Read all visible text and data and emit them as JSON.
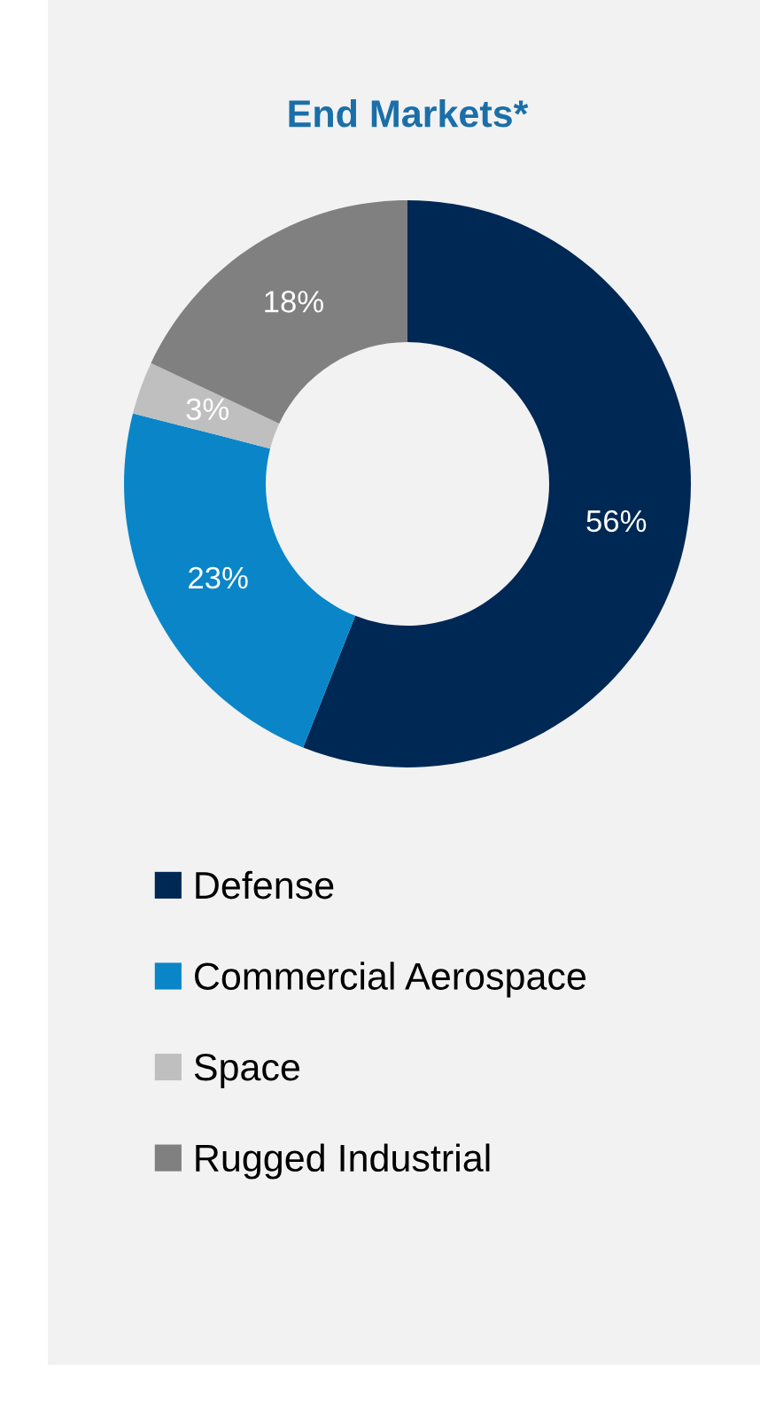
{
  "chart_data": {
    "type": "donut",
    "title": "End Markets*",
    "categories": [
      "Defense",
      "Commercial Aerospace",
      "Space",
      "Rugged Industrial"
    ],
    "values": [
      56,
      23,
      3,
      18
    ],
    "value_labels": [
      "56%",
      "23%",
      "3%",
      "18%"
    ],
    "colors": [
      "#002855",
      "#0a86c8",
      "#bfbfbf",
      "#808080"
    ],
    "legend": "bottom"
  }
}
